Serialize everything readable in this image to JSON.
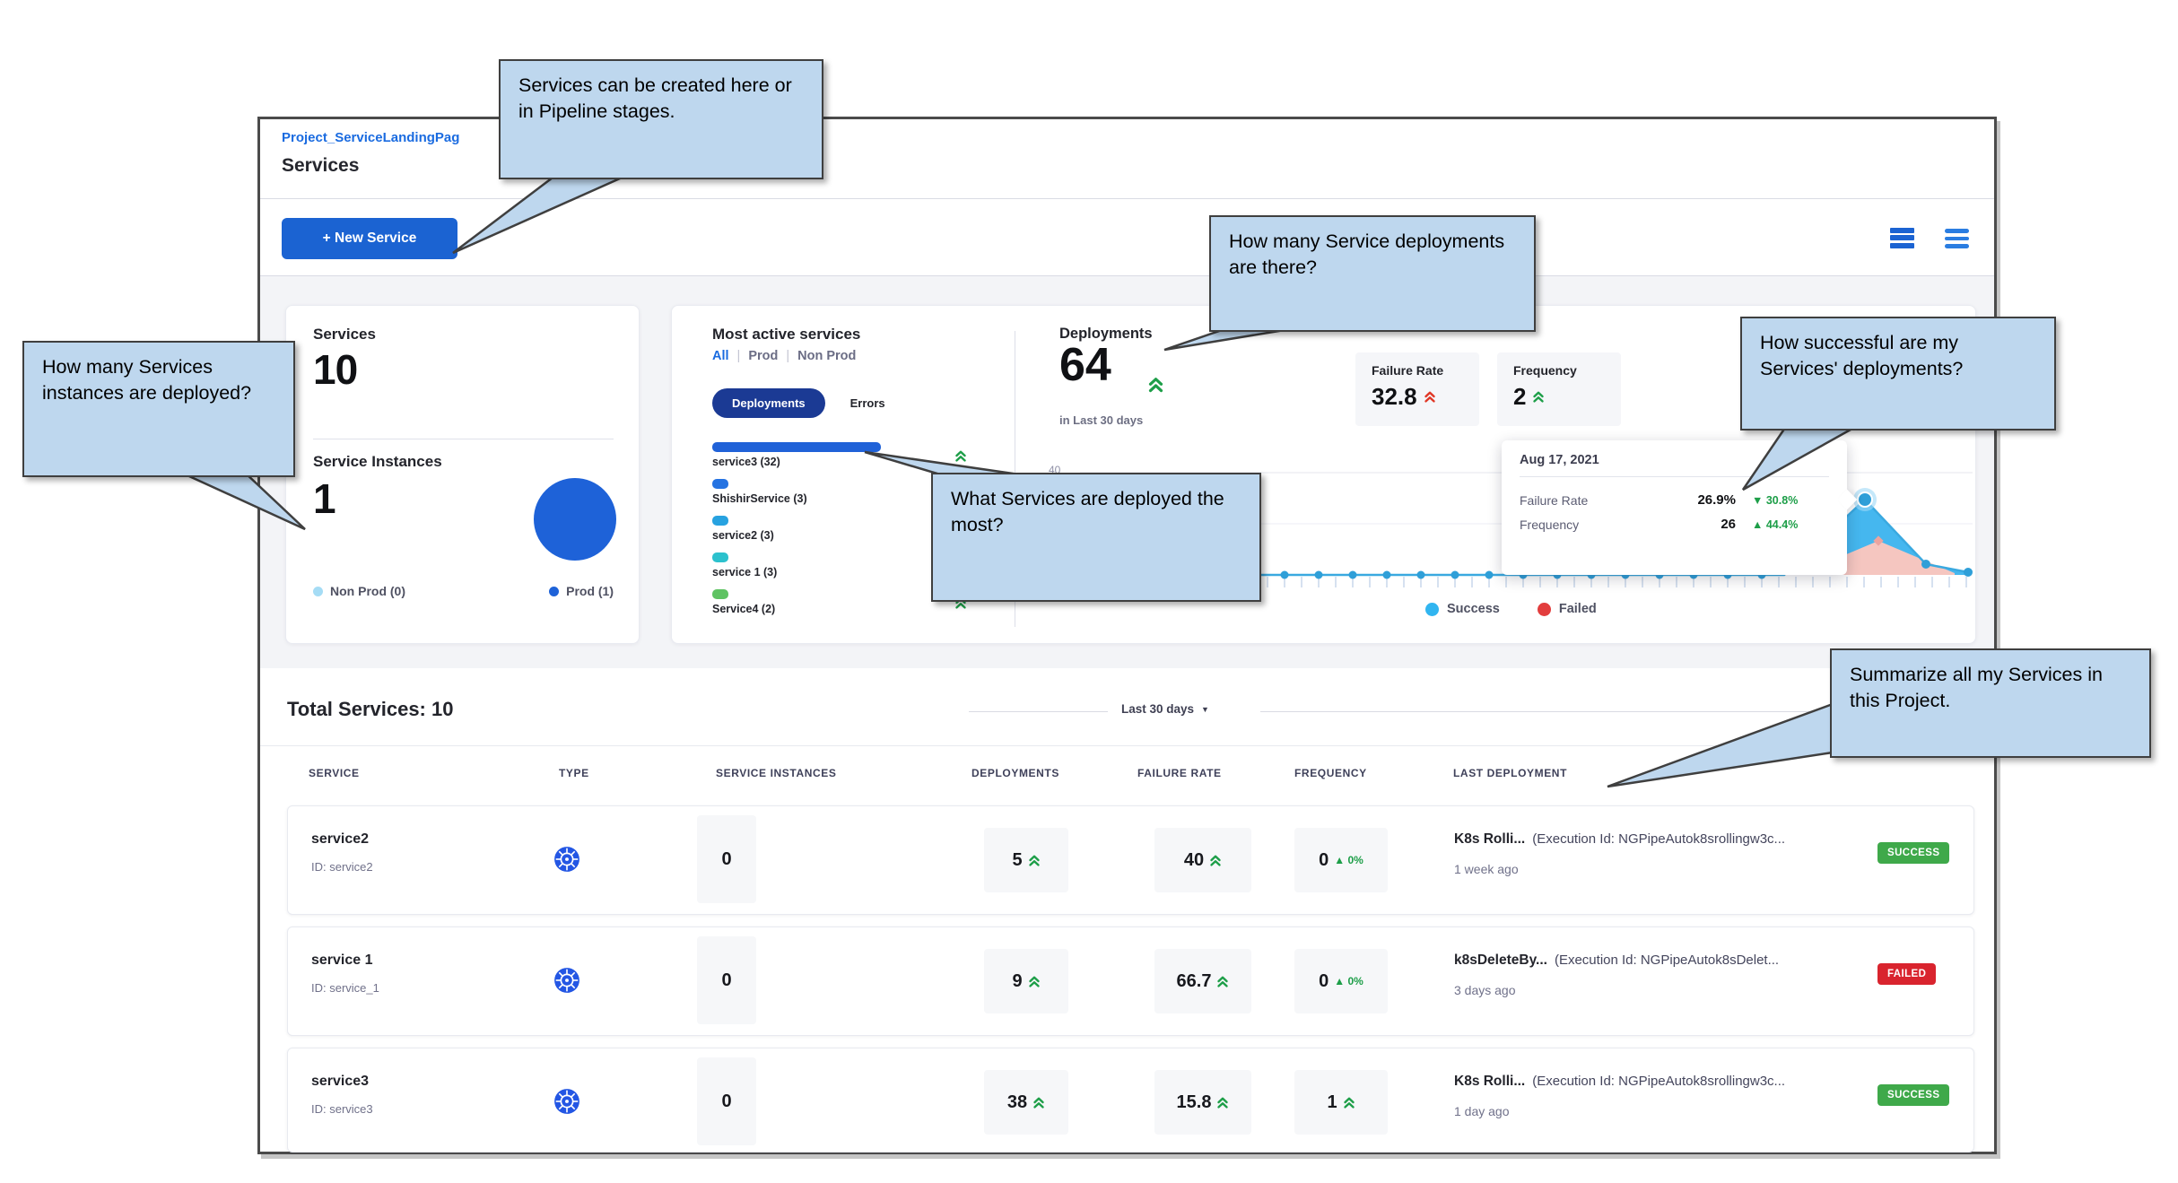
{
  "window": {
    "breadcrumb": "Project_ServiceLandingPag",
    "page_title": "Services"
  },
  "toolbar": {
    "new_service": "+ New Service"
  },
  "callouts": {
    "create": "Services can be created here or in Pipeline stages.",
    "deployments": "How many Service deployments are there?",
    "instances": "How many Services instances are deployed?",
    "most_deployed": "What Services are deployed the most?",
    "successful": "How successful are my Services' deployments?",
    "summarize": "Summarize all my Services in this Project."
  },
  "summary": {
    "services": {
      "label": "Services",
      "value": "10"
    },
    "service_instances": {
      "label": "Service Instances",
      "value": "1",
      "legend": [
        {
          "label": "Non Prod (0)",
          "color": "#a5dcf5"
        },
        {
          "label": "Prod (1)",
          "color": "#1e62d8"
        }
      ]
    },
    "most_active": {
      "title": "Most active services",
      "filters": {
        "all": "All",
        "prod": "Prod",
        "non_prod": "Non Prod",
        "active": "All"
      },
      "toggle_active": "Deployments",
      "toggle_inactive": "Errors",
      "bars": [
        {
          "label": "service3 (32)",
          "value": 32,
          "color": "#2062d8",
          "trend": "up"
        },
        {
          "label": "ShishirService (3)",
          "value": 3,
          "color": "#2573e2"
        },
        {
          "label": "service2 (3)",
          "value": 3,
          "color": "#27a2e0"
        },
        {
          "label": "service 1 (3)",
          "value": 3,
          "color": "#2cc1cd"
        },
        {
          "label": "Service4 (2)",
          "value": 2,
          "color": "#5fc363",
          "trend": "up"
        }
      ]
    },
    "deployments": {
      "title": "Deployments",
      "value": "64",
      "subtitle": "in Last 30 days",
      "failure_rate": {
        "label": "Failure Rate",
        "value": "32.8"
      },
      "frequency": {
        "label": "Frequency",
        "value": "2"
      },
      "y_axis_label": "40",
      "tooltip": {
        "date": "Aug 17, 2021",
        "rows": [
          {
            "label": "Failure Rate",
            "value": "26.9%",
            "delta": "30.8%",
            "direction": "down"
          },
          {
            "label": "Frequency",
            "value": "26",
            "delta": "44.4%",
            "direction": "up"
          }
        ]
      },
      "legend": [
        {
          "label": "Success",
          "color": "#31b5f0"
        },
        {
          "label": "Failed",
          "color": "#e23d3d"
        }
      ]
    }
  },
  "table": {
    "total_label": "Total Services: 10",
    "period_filter": "Last 30 days",
    "columns": [
      "SERVICE",
      "TYPE",
      "SERVICE INSTANCES",
      "DEPLOYMENTS",
      "FAILURE RATE",
      "FREQUENCY",
      "LAST DEPLOYMENT"
    ],
    "rows": [
      {
        "service": "service2",
        "id": "ID: service2",
        "instances": "0",
        "deployments": "5",
        "failure_rate": "40",
        "frequency": "0",
        "frequency_delta": "0%",
        "last_deployment_name": "K8s Rolli...",
        "execution": "(Execution Id: NGPipeAutok8srollingw3c...",
        "time_ago": "1 week ago",
        "status": "SUCCESS"
      },
      {
        "service": "service 1",
        "id": "ID: service_1",
        "instances": "0",
        "deployments": "9",
        "failure_rate": "66.7",
        "frequency": "0",
        "frequency_delta": "0%",
        "last_deployment_name": "k8sDeleteBy...",
        "execution": "(Execution Id: NGPipeAutok8sDelet...",
        "time_ago": "3 days ago",
        "status": "FAILED"
      },
      {
        "service": "service3",
        "id": "ID: service3",
        "instances": "0",
        "deployments": "38",
        "failure_rate": "15.8",
        "frequency": "1",
        "last_deployment_name": "K8s Rolli...",
        "execution": "(Execution Id: NGPipeAutok8srollingw3c...",
        "time_ago": "1 day ago",
        "status": "SUCCESS"
      }
    ]
  },
  "chart_data": [
    {
      "type": "pie",
      "title": "Service Instances",
      "slices": [
        {
          "label": "Non Prod",
          "value": 0
        },
        {
          "label": "Prod",
          "value": 1
        }
      ]
    },
    {
      "type": "bar",
      "title": "Most active services",
      "orientation": "horizontal",
      "series_label": "Deployments",
      "categories": [
        "service3",
        "ShishirService",
        "service2",
        "service 1",
        "Service4"
      ],
      "values": [
        32,
        3,
        3,
        3,
        2
      ]
    },
    {
      "type": "line",
      "title": "Deployments",
      "subtitle": "64 in Last 30 days",
      "ylim": [
        0,
        40
      ],
      "grid": true,
      "legend_position": "bottom",
      "legend": [
        "Success",
        "Failed"
      ],
      "highlighted_point": {
        "date": "Aug 17, 2021",
        "failure_rate": "26.9%",
        "failure_rate_delta": "-30.8%",
        "frequency": 26,
        "frequency_delta": "+44.4%"
      }
    }
  ]
}
